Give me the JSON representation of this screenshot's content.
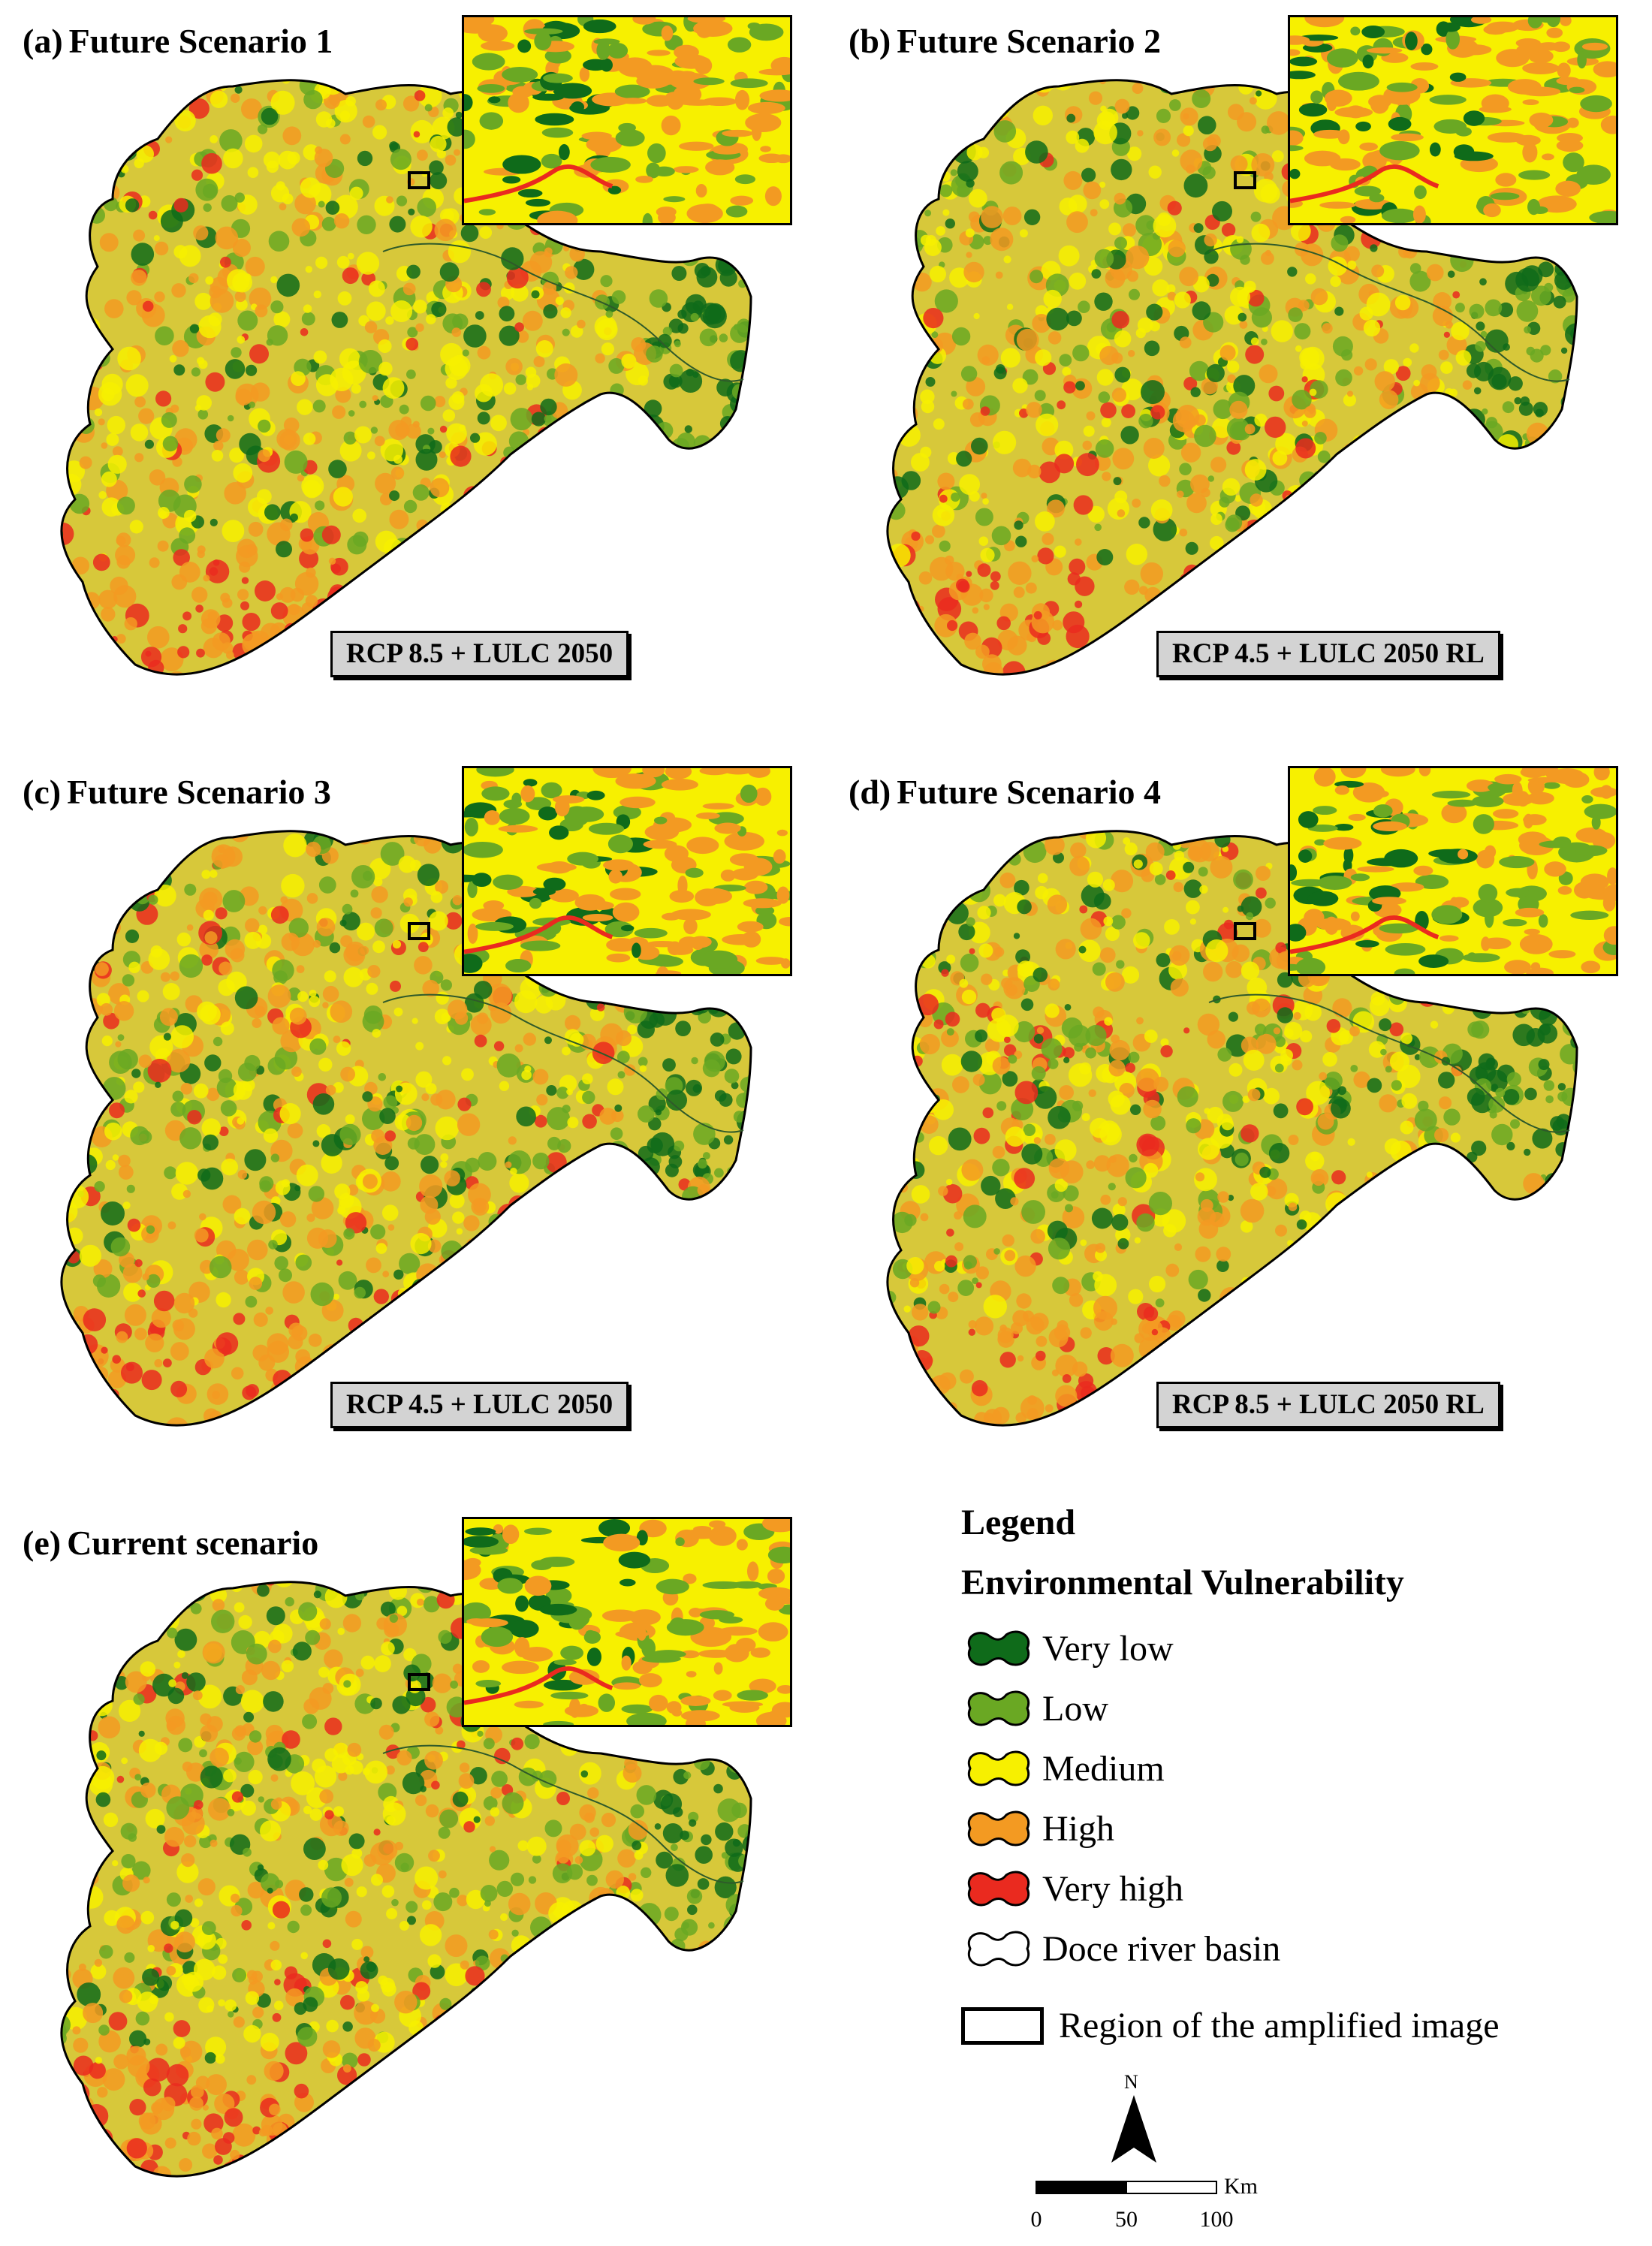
{
  "panels": [
    {
      "letter": "(a)",
      "title": "Future Scenario 1",
      "scenario": "RCP 8.5 + LULC 2050"
    },
    {
      "letter": "(b)",
      "title": "Future Scenario 2",
      "scenario": "RCP 4.5 + LULC 2050 RL"
    },
    {
      "letter": "(c)",
      "title": "Future Scenario 3",
      "scenario": "RCP 4.5 + LULC 2050"
    },
    {
      "letter": "(d)",
      "title": "Future Scenario 4",
      "scenario": "RCP 8.5 + LULC 2050 RL"
    },
    {
      "letter": "(e)",
      "title": "Current scenario",
      "scenario": ""
    }
  ],
  "legend": {
    "title": "Legend",
    "subtitle": "Environmental Vulnerability",
    "classes": [
      {
        "label": "Very low",
        "color": "#0f6b1a"
      },
      {
        "label": "Low",
        "color": "#6aa823"
      },
      {
        "label": "Medium",
        "color": "#f7f000"
      },
      {
        "label": "High",
        "color": "#f39a22"
      },
      {
        "label": "Very high",
        "color": "#ea2a1f"
      }
    ],
    "basin_label": "Doce river basin",
    "region_label": "Region of the amplified image"
  },
  "north_label": "N",
  "scale": {
    "unit": "Km",
    "ticks": [
      "0",
      "50",
      "100"
    ]
  }
}
